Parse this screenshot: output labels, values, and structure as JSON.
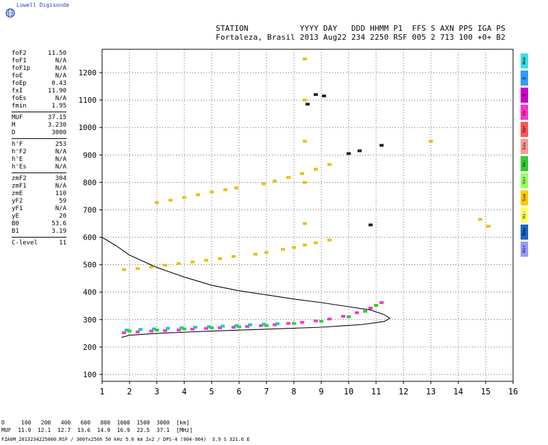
{
  "logo": {
    "text": "Lowell Digisonde"
  },
  "header": {
    "line1": "STATION           YYYY DAY   DDD HHMM P1  FFS S AXN PPS IGA PS",
    "line2": "Fortaleza, Brasil 2013 Aug22 234 2250 RSF 005 2 713 100 +0+ B2"
  },
  "params": [
    {
      "label": "foF2",
      "value": "11.50"
    },
    {
      "label": "foF1",
      "value": "N/A"
    },
    {
      "label": "foF1p",
      "value": "N/A"
    },
    {
      "label": "foE",
      "value": "N/A"
    },
    {
      "label": "foEp",
      "value": "0.43"
    },
    {
      "label": "fxI",
      "value": "11.90"
    },
    {
      "label": "foEs",
      "value": "N/A"
    },
    {
      "label": "fmin",
      "value": "1.95"
    },
    {
      "sep": true
    },
    {
      "label": "MUF",
      "value": "37.15"
    },
    {
      "label": "M",
      "value": "3.230"
    },
    {
      "label": "D",
      "value": "3000"
    },
    {
      "sep": true
    },
    {
      "label": "h'F",
      "value": "253"
    },
    {
      "label": "h'F2",
      "value": "N/A"
    },
    {
      "label": "h'E",
      "value": "N/A"
    },
    {
      "label": "h'Es",
      "value": "N/A"
    },
    {
      "sep": true
    },
    {
      "label": "zmF2",
      "value": "304"
    },
    {
      "label": "zmF1",
      "value": "N/A"
    },
    {
      "label": "zmE",
      "value": "110"
    },
    {
      "label": "yF2",
      "value": "59"
    },
    {
      "label": "yF1",
      "value": "N/A"
    },
    {
      "label": "yE",
      "value": "20"
    },
    {
      "label": "B0",
      "value": "53.6"
    },
    {
      "label": "B1",
      "value": "3.19"
    },
    {
      "sep": true
    },
    {
      "label": "C-level",
      "value": "11"
    }
  ],
  "legend": [
    {
      "label": "Nne",
      "color": "#40e0e0"
    },
    {
      "label": "E",
      "color": "#3399ff"
    },
    {
      "label": "W",
      "color": "#cc00cc"
    },
    {
      "label": "Vo-",
      "color": "#ff33cc"
    },
    {
      "label": "Vo+",
      "color": "#ff5555"
    },
    {
      "label": "Ssw",
      "color": "#ff9999"
    },
    {
      "label": "Vx-",
      "color": "#33cc33"
    },
    {
      "label": "Vx+",
      "color": "#99ff66"
    },
    {
      "label": "Sse",
      "color": "#ffcc00"
    },
    {
      "label": "Hi-",
      "color": "#ffff66"
    },
    {
      "label": "Nnw",
      "color": "#1a66cc"
    },
    {
      "label": "Hi+",
      "color": "#9999ff"
    }
  ],
  "footer": {
    "d_row": "D     100   200   400   600   800  1000  1500  3000  [km]",
    "muf_row": "MUF  11.9  12.1  12.7  13.6  14.9  16.9  22.5  37.1  [MHz]",
    "file_row": "FZA0M_2013234225000.RSF / 300fx256h 50 kHz 5.0 km 2x2 / DPS-4 (904-904)  3.9 S 321.6 E"
  },
  "chart_data": {
    "type": "scatter",
    "xlim": [
      1,
      16
    ],
    "ylim": [
      75,
      1285
    ],
    "xticks": [
      1,
      2,
      3,
      4,
      5,
      6,
      7,
      8,
      9,
      10,
      11,
      12,
      13,
      14,
      15,
      16
    ],
    "yticks": [
      100,
      200,
      300,
      400,
      500,
      600,
      700,
      800,
      900,
      1000,
      1100,
      1200
    ],
    "grid": true,
    "series": [
      {
        "color": "#ff33cc",
        "x": [
          1.8,
          2.3,
          2.8,
          3.3,
          3.8,
          4.3,
          4.8,
          5.3,
          5.8,
          6.3,
          6.8,
          7.3,
          7.8,
          8.3,
          8.8,
          9.3,
          9.8,
          10.3,
          10.8,
          11.2
        ],
        "y": [
          252,
          255,
          258,
          260,
          262,
          265,
          268,
          270,
          272,
          275,
          278,
          281,
          286,
          290,
          295,
          302,
          312,
          325,
          342,
          362
        ]
      },
      {
        "color": "#00cccc",
        "x": [
          1.9,
          2.4,
          2.9,
          3.4,
          3.9,
          4.4,
          4.9,
          5.4,
          5.9,
          6.4,
          6.9,
          7.4
        ],
        "y": [
          262,
          264,
          266,
          268,
          270,
          272,
          274,
          276,
          278,
          281,
          283,
          285
        ]
      },
      {
        "color": "#33cc33",
        "x": [
          2.0,
          3.0,
          4.0,
          5.0,
          6.0,
          7.0,
          8.0,
          9.0,
          10.0,
          10.6,
          11.0
        ],
        "y": [
          258,
          262,
          266,
          270,
          274,
          278,
          286,
          294,
          310,
          330,
          352
        ]
      },
      {
        "color": "#e6c200",
        "x": [
          1.8,
          2.3,
          2.8,
          3.3,
          3.8,
          4.3,
          4.8,
          5.3,
          5.8
        ],
        "y": [
          482,
          486,
          492,
          498,
          504,
          510,
          516,
          522,
          530
        ]
      },
      {
        "color": "#e6c200",
        "x": [
          6.6,
          7.0,
          7.6,
          8.0,
          8.4,
          8.8,
          9.3
        ],
        "y": [
          538,
          545,
          556,
          563,
          572,
          580,
          590
        ]
      },
      {
        "color": "#e6c200",
        "x": [
          3.0,
          3.5,
          4.0,
          4.5,
          5.0,
          5.5,
          5.9
        ],
        "y": [
          726,
          735,
          745,
          755,
          765,
          773,
          780
        ]
      },
      {
        "color": "#e6c200",
        "x": [
          6.9,
          7.3,
          7.8,
          8.3,
          8.8,
          9.3
        ],
        "y": [
          795,
          805,
          818,
          832,
          848,
          865
        ]
      },
      {
        "color": "#222222",
        "x": [
          8.5,
          8.8,
          9.1,
          10.0,
          10.4,
          10.8,
          11.2
        ],
        "y": [
          1085,
          1120,
          1115,
          905,
          915,
          645,
          935
        ]
      },
      {
        "color": "#e6c200",
        "x": [
          8.4,
          8.4,
          8.4,
          8.4,
          8.4,
          13.0,
          14.8,
          15.1
        ],
        "y": [
          1250,
          1100,
          950,
          800,
          650,
          950,
          665,
          640
        ]
      }
    ],
    "curves": [
      {
        "name": "profile",
        "x": [
          1.0,
          1.5,
          2.0,
          3.0,
          4.0,
          5.0,
          6.0,
          7.0,
          8.0,
          9.0,
          10.0,
          10.8,
          11.3,
          11.5,
          11.3,
          10.5,
          9.0,
          7.0,
          5.0,
          3.0,
          2.0,
          1.7
        ],
        "y": [
          600,
          570,
          535,
          490,
          455,
          425,
          405,
          390,
          375,
          362,
          347,
          335,
          318,
          305,
          293,
          282,
          272,
          265,
          258,
          250,
          243,
          235
        ]
      }
    ]
  }
}
